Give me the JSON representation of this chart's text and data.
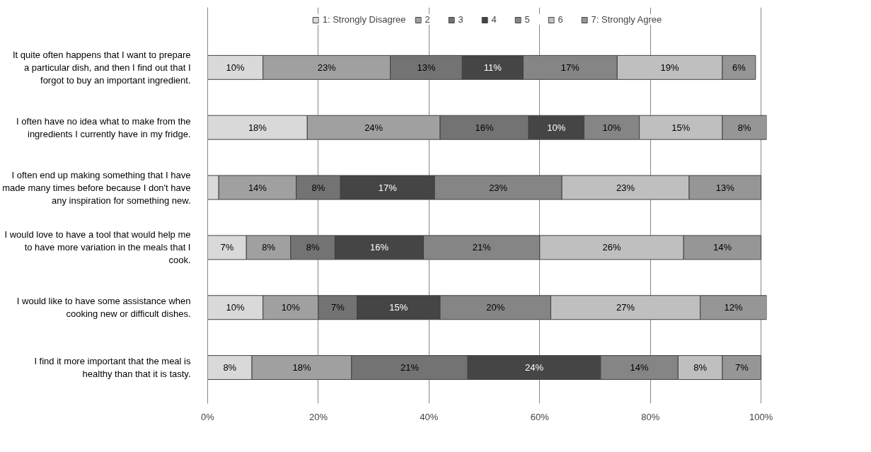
{
  "chart_data": {
    "type": "bar",
    "orientation": "horizontal",
    "stacked": true,
    "categories": [
      "It quite often happens that I want to prepare a particular dish, and then I find out that I forgot to buy an important ingredient.",
      "I often have no idea what to make from the ingredients I currently have in my fridge.",
      "I often end up making something that I have made many times before because I don't have any inspiration for something new.",
      "I would love to have a tool that would help me to have more variation in the meals that I cook.",
      "I would like to have some assistance when cooking new or difficult dishes.",
      "I find it more important that the meal is healthy than that it is tasty."
    ],
    "series": [
      {
        "name": "1: Strongly Disagree",
        "color": "#d9d9d9",
        "values": [
          10,
          18,
          2,
          7,
          10,
          8
        ],
        "value_labels": [
          "10%",
          "18%",
          null,
          "7%",
          "10%",
          "8%"
        ]
      },
      {
        "name": "2",
        "color": "#a0a0a0",
        "values": [
          23,
          24,
          14,
          8,
          10,
          18
        ],
        "value_labels": [
          "23%",
          "24%",
          "14%",
          "8%",
          "10%",
          "18%"
        ]
      },
      {
        "name": "3",
        "color": "#737373",
        "values": [
          13,
          16,
          8,
          8,
          7,
          21
        ],
        "value_labels": [
          "13%",
          "16%",
          "8%",
          "8%",
          "7%",
          "21%"
        ]
      },
      {
        "name": "4",
        "color": "#454545",
        "values": [
          11,
          10,
          17,
          16,
          15,
          24
        ],
        "value_labels": [
          "11%",
          "10%",
          "17%",
          "16%",
          "15%",
          "24%"
        ]
      },
      {
        "name": "5",
        "color": "#858585",
        "values": [
          17,
          10,
          23,
          21,
          20,
          14
        ],
        "value_labels": [
          "17%",
          "10%",
          "23%",
          "21%",
          "20%",
          "14%"
        ]
      },
      {
        "name": "6",
        "color": "#bfbfbf",
        "values": [
          19,
          15,
          23,
          26,
          27,
          8
        ],
        "value_labels": [
          "19%",
          "15%",
          "23%",
          "26%",
          "27%",
          "8%"
        ]
      },
      {
        "name": "7: Strongly Agree",
        "color": "#969696",
        "values": [
          6,
          8,
          13,
          14,
          12,
          7
        ],
        "value_labels": [
          "6%",
          "8%",
          "13%",
          "14%",
          "12%",
          "7%"
        ]
      }
    ],
    "xlim": [
      0,
      101
    ],
    "xticks": [
      {
        "value": 0,
        "label": "0%"
      },
      {
        "value": 20,
        "label": "20%"
      },
      {
        "value": 40,
        "label": "40%"
      },
      {
        "value": 60,
        "label": "60%"
      },
      {
        "value": 80,
        "label": "80%"
      },
      {
        "value": 100,
        "label": "100%"
      }
    ],
    "grid": "x",
    "legend": "top"
  }
}
